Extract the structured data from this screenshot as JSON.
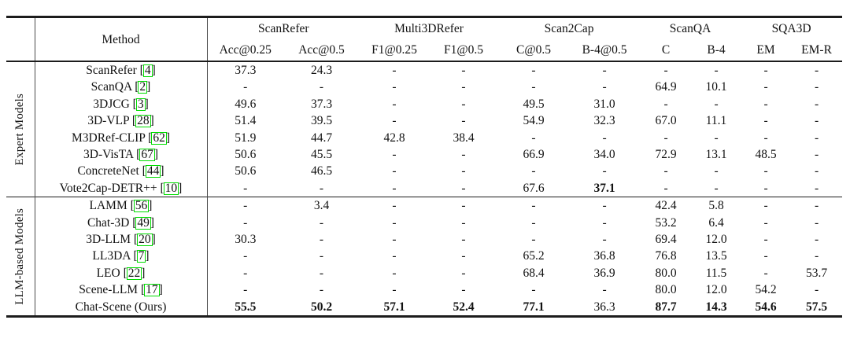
{
  "table": {
    "method_header": "Method",
    "cite_box_color": "#00dd00",
    "col_groups": [
      {
        "label": "ScanRefer",
        "cols": [
          "Acc@0.25",
          "Acc@0.5"
        ]
      },
      {
        "label": "Multi3DRefer",
        "cols": [
          "F1@0.25",
          "F1@0.5"
        ]
      },
      {
        "label": "Scan2Cap",
        "cols": [
          "C@0.5",
          "B-4@0.5"
        ]
      },
      {
        "label": "ScanQA",
        "cols": [
          "C",
          "B-4"
        ]
      },
      {
        "label": "SQA3D",
        "cols": [
          "EM",
          "EM-R"
        ]
      }
    ],
    "row_groups": [
      {
        "label": "Expert Models",
        "rows": [
          {
            "method": "ScanRefer",
            "cite": "4",
            "values": [
              "37.3",
              "24.3",
              "-",
              "-",
              "-",
              "-",
              "-",
              "-",
              "-",
              "-"
            ],
            "bold": []
          },
          {
            "method": "ScanQA",
            "cite": "2",
            "values": [
              "-",
              "-",
              "-",
              "-",
              "-",
              "-",
              "64.9",
              "10.1",
              "-",
              "-"
            ],
            "bold": []
          },
          {
            "method": "3DJCG",
            "cite": "3",
            "values": [
              "49.6",
              "37.3",
              "-",
              "-",
              "49.5",
              "31.0",
              "-",
              "-",
              "-",
              "-"
            ],
            "bold": []
          },
          {
            "method": "3D-VLP",
            "cite": "28",
            "values": [
              "51.4",
              "39.5",
              "-",
              "-",
              "54.9",
              "32.3",
              "67.0",
              "11.1",
              "-",
              "-"
            ],
            "bold": []
          },
          {
            "method": "M3DRef-CLIP",
            "cite": "62",
            "values": [
              "51.9",
              "44.7",
              "42.8",
              "38.4",
              "-",
              "-",
              "-",
              "-",
              "-",
              "-"
            ],
            "bold": []
          },
          {
            "method": "3D-VisTA",
            "cite": "67",
            "values": [
              "50.6",
              "45.5",
              "-",
              "-",
              "66.9",
              "34.0",
              "72.9",
              "13.1",
              "48.5",
              "-"
            ],
            "bold": []
          },
          {
            "method": "ConcreteNet",
            "cite": "44",
            "values": [
              "50.6",
              "46.5",
              "-",
              "-",
              "-",
              "-",
              "-",
              "-",
              "-",
              "-"
            ],
            "bold": []
          },
          {
            "method": "Vote2Cap-DETR++",
            "cite": "10",
            "values": [
              "-",
              "-",
              "-",
              "-",
              "67.6",
              "37.1",
              "-",
              "-",
              "-",
              "-"
            ],
            "bold": [
              5
            ]
          }
        ]
      },
      {
        "label": "LLM-based Models",
        "rows": [
          {
            "method": "LAMM",
            "cite": "56",
            "values": [
              "-",
              "3.4",
              "-",
              "-",
              "-",
              "-",
              "42.4",
              "5.8",
              "-",
              "-"
            ],
            "bold": []
          },
          {
            "method": "Chat-3D",
            "cite": "49",
            "values": [
              "-",
              "-",
              "-",
              "-",
              "-",
              "-",
              "53.2",
              "6.4",
              "-",
              "-"
            ],
            "bold": []
          },
          {
            "method": "3D-LLM",
            "cite": "20",
            "values": [
              "30.3",
              "-",
              "-",
              "-",
              "-",
              "-",
              "69.4",
              "12.0",
              "-",
              "-"
            ],
            "bold": []
          },
          {
            "method": "LL3DA",
            "cite": "7",
            "values": [
              "-",
              "-",
              "-",
              "-",
              "65.2",
              "36.8",
              "76.8",
              "13.5",
              "-",
              "-"
            ],
            "bold": []
          },
          {
            "method": "LEO",
            "cite": "22",
            "values": [
              "-",
              "-",
              "-",
              "-",
              "68.4",
              "36.9",
              "80.0",
              "11.5",
              "-",
              "53.7"
            ],
            "bold": []
          },
          {
            "method": "Scene-LLM",
            "cite": "17",
            "values": [
              "-",
              "-",
              "-",
              "-",
              "-",
              "-",
              "80.0",
              "12.0",
              "54.2",
              "-"
            ],
            "bold": []
          },
          {
            "method": "Chat-Scene (Ours)",
            "cite": null,
            "values": [
              "55.5",
              "50.2",
              "57.1",
              "52.4",
              "77.1",
              "36.3",
              "87.7",
              "14.3",
              "54.6",
              "57.5"
            ],
            "bold": [
              0,
              1,
              2,
              3,
              4,
              6,
              7,
              8,
              9
            ]
          }
        ]
      }
    ]
  }
}
